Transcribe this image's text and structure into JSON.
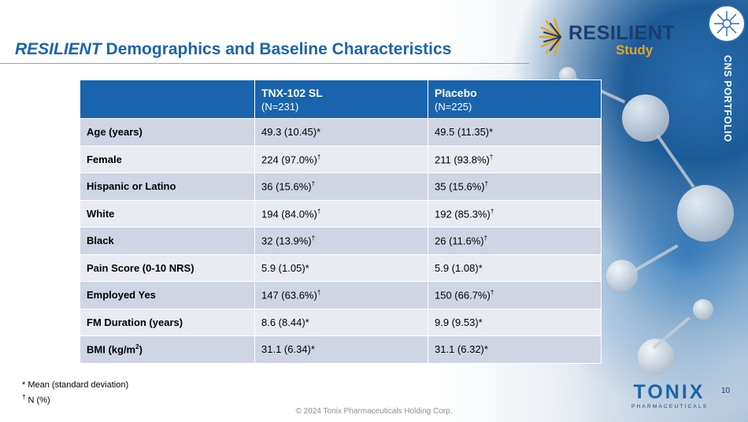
{
  "title": {
    "italic": "RESILIENT",
    "rest": " Demographics and Baseline Characteristics"
  },
  "logo": {
    "word": "RESILIENT",
    "sub": "Study"
  },
  "side_label": "CNS PORTFOLIO",
  "table": {
    "columns": [
      {
        "name": "TNX-102 SL",
        "n": "(N=231)"
      },
      {
        "name": "Placebo",
        "n": "(N=225)"
      }
    ],
    "rows": [
      {
        "label": "Age (years)",
        "tnx": "49.3 (10.45)*",
        "pbo": "49.5 (11.35)*",
        "tnx_sup": "",
        "pbo_sup": "",
        "label_sup": ""
      },
      {
        "label": "Female",
        "tnx": "224 (97.0%)",
        "pbo": "211 (93.8%)",
        "tnx_sup": "†",
        "pbo_sup": "†",
        "label_sup": ""
      },
      {
        "label": "Hispanic or Latino",
        "tnx": "36 (15.6%)",
        "pbo": "35 (15.6%)",
        "tnx_sup": "†",
        "pbo_sup": "†",
        "label_sup": ""
      },
      {
        "label": "White",
        "tnx": "194 (84.0%)",
        "pbo": "192 (85.3%)",
        "tnx_sup": "†",
        "pbo_sup": "†",
        "label_sup": ""
      },
      {
        "label": "Black",
        "tnx": "32 (13.9%)",
        "pbo": "26 (11.6%)",
        "tnx_sup": "†",
        "pbo_sup": "†",
        "label_sup": ""
      },
      {
        "label": "Pain Score (0-10 NRS)",
        "tnx": "5.9 (1.05)*",
        "pbo": "5.9 (1.08)*",
        "tnx_sup": "",
        "pbo_sup": "",
        "label_sup": ""
      },
      {
        "label": "Employed Yes",
        "tnx": "147 (63.6%)",
        "pbo": "150 (66.7%)",
        "tnx_sup": "†",
        "pbo_sup": "†",
        "label_sup": ""
      },
      {
        "label": "FM Duration (years)",
        "tnx": "8.6 (8.44)*",
        "pbo": "9.9 (9.53)*",
        "tnx_sup": "",
        "pbo_sup": "",
        "label_sup": ""
      },
      {
        "label": "BMI (kg/m",
        "label_sup": "2",
        "label_end": ")",
        "tnx": "31.1 (6.34)*",
        "pbo": "31.1 (6.32)*",
        "tnx_sup": "",
        "pbo_sup": ""
      }
    ]
  },
  "footnotes": {
    "line1": "* Mean (standard deviation)",
    "line2_sup": "†",
    "line2": " N (%)"
  },
  "copyright": "© 2024 Tonix Pharmaceuticals Holding Corp.",
  "page_number": "10",
  "company": {
    "name": "TONIX",
    "sub": "PHARMACEUTICALS"
  },
  "colors": {
    "header_blue": "#1a64ad",
    "row_dark": "#cfd5e3",
    "row_light": "#e8ebf2",
    "logo_navy": "#1b3d6e",
    "logo_gold": "#e9a323"
  }
}
